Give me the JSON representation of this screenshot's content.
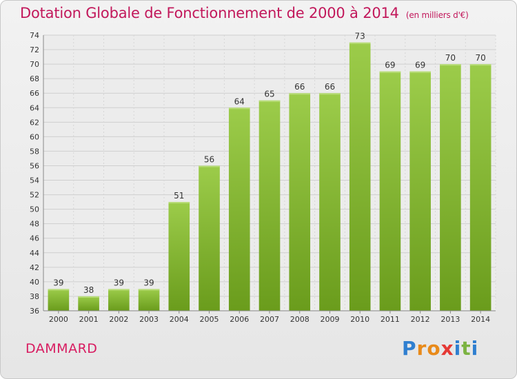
{
  "header": {
    "title": "Dotation Globale de Fonctionnement de 2000 à 2014",
    "subtitle": "(en milliers d'€)"
  },
  "commune": "DAMMARD",
  "logo": {
    "letters": [
      "P",
      "r",
      "o",
      "x",
      "i",
      "t",
      "i"
    ],
    "colors": [
      "#2f7fd0",
      "#e88a1a",
      "#e88a1a",
      "#e53935",
      "#2f7fd0",
      "#7cb342",
      "#2f7fd0"
    ]
  },
  "colors": {
    "bar_light": "#9ccc4a",
    "bar_dark": "#6a9c1c",
    "title": "#c2185b"
  },
  "chart_data": {
    "type": "bar",
    "title": "Dotation Globale de Fonctionnement de 2000 à 2014",
    "subtitle": "(en milliers d'€)",
    "categories": [
      "2000",
      "2001",
      "2002",
      "2003",
      "2004",
      "2005",
      "2006",
      "2007",
      "2008",
      "2009",
      "2010",
      "2011",
      "2012",
      "2013",
      "2014"
    ],
    "values": [
      39,
      38,
      39,
      39,
      51,
      56,
      64,
      65,
      66,
      66,
      73,
      69,
      69,
      70,
      70
    ],
    "ylim": [
      36,
      74
    ],
    "yticks": [
      36,
      38,
      40,
      42,
      44,
      46,
      48,
      50,
      52,
      54,
      56,
      58,
      60,
      62,
      64,
      66,
      68,
      70,
      72,
      74
    ],
    "grid": true,
    "legend": "none"
  }
}
